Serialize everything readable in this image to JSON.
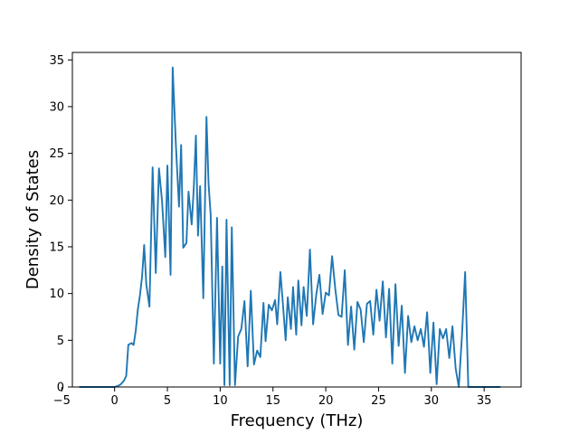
{
  "chart_data": {
    "type": "line",
    "title": "",
    "xlabel": "Frequency (THz)",
    "ylabel": "Density of States",
    "xlim": [
      -4.0,
      38.5
    ],
    "ylim": [
      0,
      35.8
    ],
    "grid": false,
    "legend": "none",
    "line_color": "#1f77b4",
    "xticks": [
      -5,
      0,
      5,
      10,
      15,
      20,
      25,
      30,
      35
    ],
    "xtick_labels": [
      "−5",
      "0",
      "5",
      "10",
      "15",
      "20",
      "25",
      "30",
      "35"
    ],
    "yticks": [
      0,
      5,
      10,
      15,
      20,
      25,
      30,
      35
    ],
    "ytick_labels": [
      "0",
      "5",
      "10",
      "15",
      "20",
      "25",
      "30",
      "35"
    ],
    "series": [
      {
        "x": [
          -3.3,
          -2.0,
          -1.0,
          0.0,
          0.3,
          0.6,
          0.9,
          1.1,
          1.3,
          1.6,
          1.8,
          2.0,
          2.2,
          2.4,
          2.6,
          2.8,
          3.0,
          3.3,
          3.6,
          3.9,
          4.2,
          4.5,
          4.8,
          5.0,
          5.3,
          5.5,
          5.8,
          6.1,
          6.3,
          6.5,
          6.8,
          7.0,
          7.3,
          7.5,
          7.7,
          7.9,
          8.1,
          8.4,
          8.7,
          8.9,
          9.1,
          9.4,
          9.7,
          10.0,
          10.2,
          10.4,
          10.6,
          10.9,
          11.1,
          11.4,
          11.7,
          12.0,
          12.3,
          12.6,
          12.9,
          13.2,
          13.5,
          13.8,
          14.1,
          14.3,
          14.6,
          14.9,
          15.2,
          15.4,
          15.7,
          15.9,
          16.2,
          16.4,
          16.7,
          16.9,
          17.2,
          17.4,
          17.7,
          17.9,
          18.2,
          18.5,
          18.8,
          19.1,
          19.4,
          19.7,
          20.0,
          20.3,
          20.6,
          20.9,
          21.2,
          21.5,
          21.8,
          22.1,
          22.4,
          22.7,
          23.0,
          23.3,
          23.6,
          23.9,
          24.2,
          24.5,
          24.8,
          25.1,
          25.4,
          25.7,
          26.0,
          26.3,
          26.6,
          26.9,
          27.2,
          27.5,
          27.8,
          28.1,
          28.4,
          28.7,
          29.0,
          29.3,
          29.6,
          29.9,
          30.2,
          30.5,
          30.8,
          31.1,
          31.4,
          31.7,
          32.0,
          32.3,
          32.6,
          32.9,
          33.2,
          33.5,
          34.0,
          35.0,
          36.5
        ],
        "y": [
          0,
          0,
          0,
          0,
          0.1,
          0.3,
          0.7,
          1.2,
          4.5,
          4.7,
          4.5,
          6.0,
          8.3,
          9.8,
          11.8,
          15.2,
          11.0,
          8.6,
          23.5,
          12.2,
          23.4,
          19.8,
          13.9,
          23.7,
          12.0,
          34.2,
          26.0,
          19.3,
          25.9,
          14.9,
          15.4,
          20.9,
          17.4,
          21.3,
          26.9,
          16.2,
          21.5,
          9.5,
          28.9,
          21.7,
          18.4,
          2.5,
          18.1,
          2.5,
          12.9,
          0.2,
          17.9,
          0.2,
          17.1,
          0.2,
          5.4,
          6.2,
          9.2,
          2.2,
          10.3,
          2.4,
          3.9,
          3.2,
          9.0,
          4.9,
          8.8,
          8.2,
          9.3,
          6.7,
          12.3,
          9.5,
          5.0,
          9.6,
          6.2,
          10.7,
          5.6,
          11.4,
          6.6,
          10.7,
          7.6,
          14.7,
          6.7,
          9.9,
          12.0,
          7.8,
          10.1,
          9.8,
          14.0,
          10.5,
          7.7,
          7.5,
          12.5,
          4.5,
          8.6,
          4.0,
          9.1,
          8.3,
          4.8,
          8.9,
          9.2,
          5.6,
          10.4,
          7.1,
          11.3,
          5.3,
          10.5,
          2.5,
          11.0,
          4.4,
          8.7,
          1.5,
          7.6,
          4.8,
          6.5,
          5.0,
          6.2,
          4.3,
          8.0,
          1.5,
          6.9,
          0.3,
          6.2,
          5.2,
          6.2,
          3.1,
          6.5,
          2.0,
          0.0,
          5.5,
          12.3,
          0.0,
          0.0,
          0.0,
          0.0
        ]
      }
    ]
  }
}
